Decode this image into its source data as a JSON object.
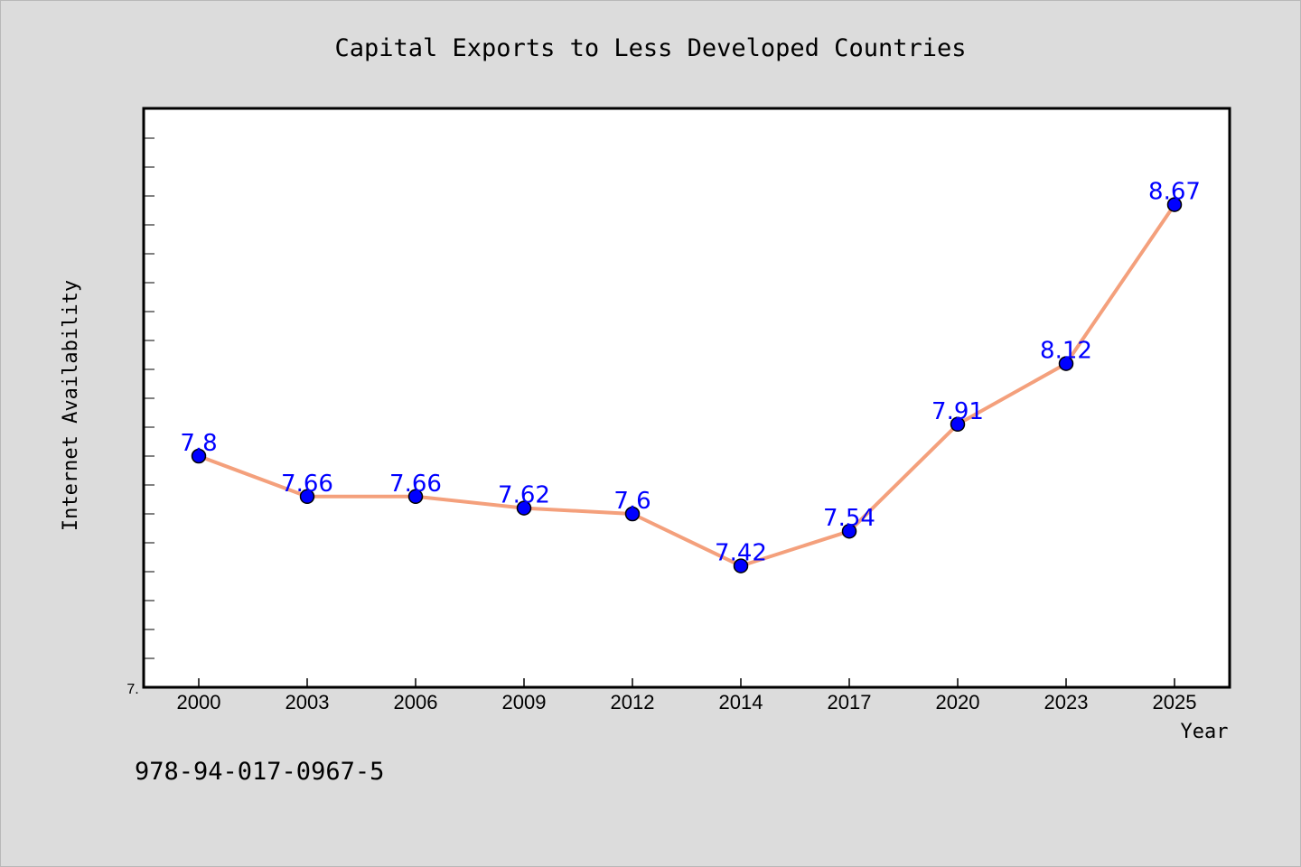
{
  "footer": {
    "isbn": "978-94-017-0967-5"
  },
  "colors": {
    "background": "#dcdcdc",
    "plot_background": "#ffffff",
    "line": "#f4a07c",
    "marker": "#0000ff",
    "data_label": "#0000ff"
  },
  "chart_data": {
    "type": "line",
    "title": "Capital Exports to Less Developed Countries",
    "xlabel": "Year",
    "ylabel": "Internet Availability",
    "categories": [
      "2000",
      "2003",
      "2006",
      "2009",
      "2012",
      "2014",
      "2017",
      "2020",
      "2023",
      "2025"
    ],
    "values": [
      7.8,
      7.66,
      7.66,
      7.62,
      7.6,
      7.42,
      7.54,
      7.91,
      8.12,
      8.67
    ],
    "data_labels": [
      "7.8",
      "7.66",
      "7.66",
      "7.62",
      "7.6",
      "7.42",
      "7.54",
      "7.91",
      "8.12",
      "8.67"
    ],
    "ytick_labels": [
      "7."
    ],
    "ylim": [
      7.0,
      9.0
    ],
    "grid": false,
    "legend": "none"
  }
}
